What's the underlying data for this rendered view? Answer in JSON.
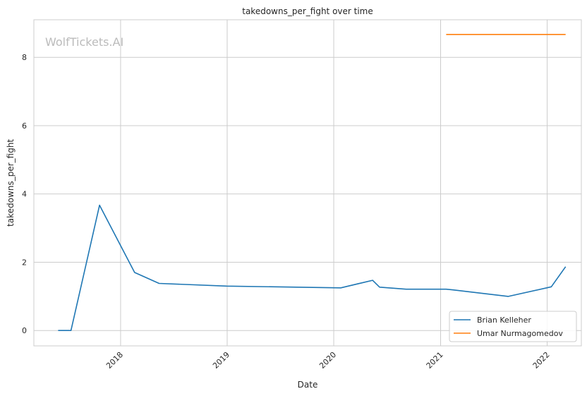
{
  "chart_data": {
    "type": "line",
    "title": "takedowns_per_fight over time",
    "xlabel": "Date",
    "ylabel": "takedowns_per_fight",
    "watermark": "WolfTickets.AI",
    "x_ticks": [
      "2018",
      "2019",
      "2020",
      "2021",
      "2022"
    ],
    "y_ticks": [
      "0",
      "2",
      "4",
      "6",
      "8"
    ],
    "xlim": [
      "2017-03-10",
      "2022-04-28"
    ],
    "ylim": [
      -0.45,
      9.1
    ],
    "grid": true,
    "legend_position": "bottom-right",
    "series": [
      {
        "name": "Brian Kelleher",
        "color": "#1f77b4",
        "points": [
          [
            "2017-06-01",
            0.0
          ],
          [
            "2017-07-15",
            0.0
          ],
          [
            "2017-10-21",
            3.67
          ],
          [
            "2018-02-18",
            1.7
          ],
          [
            "2018-05-13",
            1.38
          ],
          [
            "2018-12-30",
            1.3
          ],
          [
            "2020-01-25",
            1.25
          ],
          [
            "2020-05-13",
            1.47
          ],
          [
            "2020-06-06",
            1.27
          ],
          [
            "2020-09-05",
            1.21
          ],
          [
            "2021-01-20",
            1.21
          ],
          [
            "2021-02-13",
            1.19
          ],
          [
            "2021-08-21",
            1.0
          ],
          [
            "2022-01-15",
            1.28
          ],
          [
            "2022-03-05",
            1.87
          ]
        ]
      },
      {
        "name": "Umar Nurmagomedov",
        "color": "#ff7f0e",
        "points": [
          [
            "2021-01-20",
            8.67
          ],
          [
            "2022-03-05",
            8.67
          ]
        ]
      }
    ]
  }
}
